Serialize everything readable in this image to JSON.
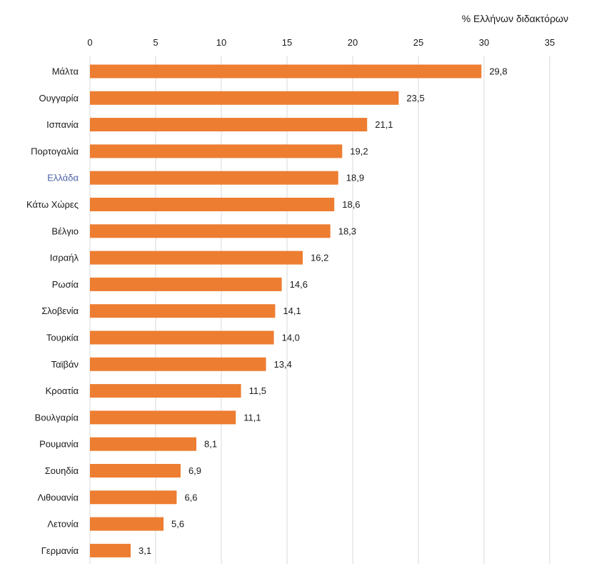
{
  "chart_data": {
    "type": "bar",
    "orientation": "horizontal",
    "title": "",
    "xlabel": "% Ελλήνων διδακτόρων",
    "ylabel": "",
    "xlim": [
      0,
      35
    ],
    "x_ticks": [
      0,
      5,
      10,
      15,
      20,
      25,
      30,
      35
    ],
    "x_axis_position": "top",
    "grid": "vertical",
    "legend": "none",
    "bar_color": "#ED7D31",
    "highlight_label_color": "#4A5FA8",
    "highlight_category": "Ελλάδα",
    "categories": [
      "Μάλτα",
      "Ουγγαρία",
      "Ισπανία",
      "Πορτογαλία",
      "Ελλάδα",
      "Κάτω Χώρες",
      "Βέλγιο",
      "Ισραήλ",
      "Ρωσία",
      "Σλοβενία",
      "Τουρκία",
      "Ταϊβάν",
      "Κροατία",
      "Βουλγαρία",
      "Ρουμανία",
      "Σουηδία",
      "Λιθουανία",
      "Λετονία",
      "Γερμανία"
    ],
    "values": [
      29.8,
      23.5,
      21.1,
      19.2,
      18.9,
      18.6,
      18.3,
      16.2,
      14.6,
      14.1,
      14.0,
      13.4,
      11.5,
      11.1,
      8.1,
      6.9,
      6.6,
      5.6,
      3.1
    ],
    "value_labels": [
      "29,8",
      "23,5",
      "21,1",
      "19,2",
      "18,9",
      "18,6",
      "18,3",
      "16,2",
      "14,6",
      "14,1",
      "14,0",
      "13,4",
      "11,5",
      "11,1",
      "8,1",
      "6,9",
      "6,6",
      "5,6",
      "3,1"
    ]
  }
}
